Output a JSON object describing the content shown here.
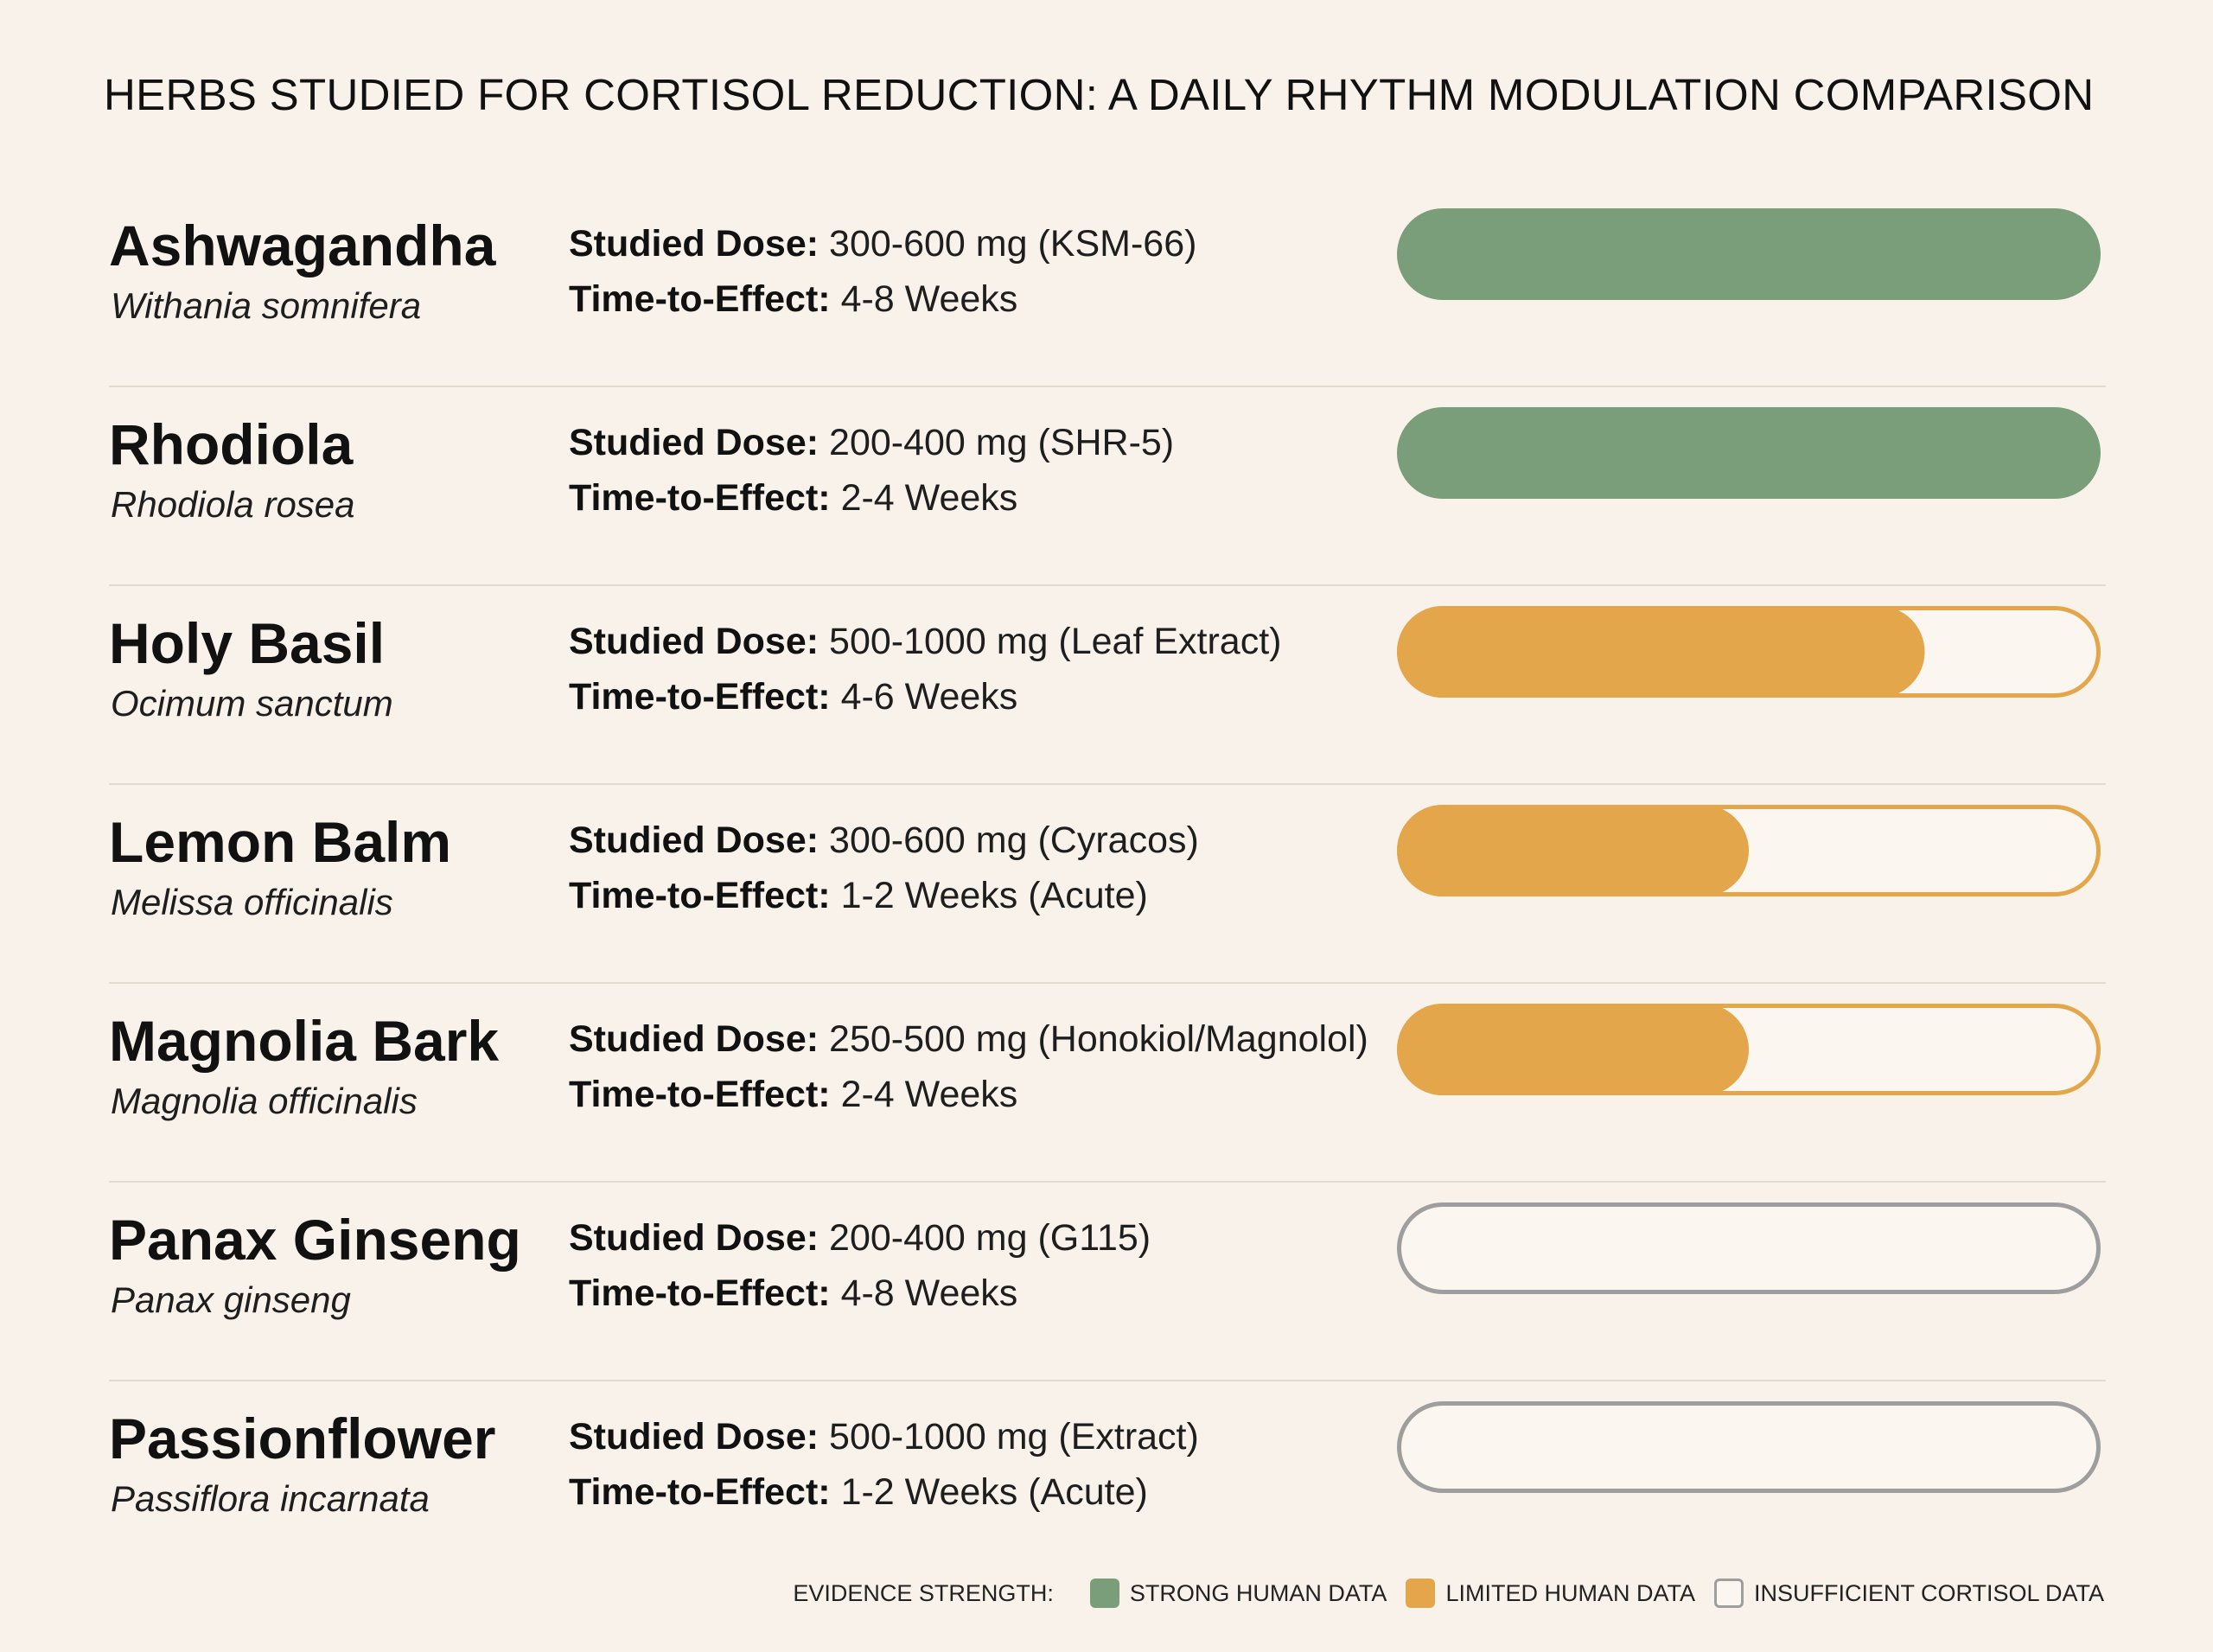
{
  "chart_data": {
    "type": "bar",
    "title": "HERBS STUDIED FOR CORTISOL REDUCTION: A DAILY RHYTHM MODULATION COMPARISON",
    "categories": [
      "Ashwagandha",
      "Rhodiola",
      "Holy Basil",
      "Lemon Balm",
      "Magnolia Bark",
      "Panax Ginseng",
      "Passionflower"
    ],
    "labels": {
      "dose": "Studied Dose:",
      "time": "Time-to-Effect:"
    },
    "rows": [
      {
        "name": "Ashwagandha",
        "latin": "Withania somnifera",
        "dose": "300-600 mg (KSM-66)",
        "time": "4-8 Weeks",
        "evidence": "strong",
        "value": 1.0
      },
      {
        "name": "Rhodiola",
        "latin": "Rhodiola rosea",
        "dose": "200-400 mg (SHR-5)",
        "time": "2-4 Weeks",
        "evidence": "strong",
        "value": 1.0
      },
      {
        "name": "Holy Basil",
        "latin": "Ocimum sanctum",
        "dose": "500-1000 mg (Leaf Extract)",
        "time": "4-6 Weeks",
        "evidence": "limited",
        "value": 0.75
      },
      {
        "name": "Lemon Balm",
        "latin": "Melissa officinalis",
        "dose": "300-600 mg (Cyracos)",
        "time": "1-2 Weeks (Acute)",
        "evidence": "limited",
        "value": 0.5
      },
      {
        "name": "Magnolia Bark",
        "latin": "Magnolia officinalis",
        "dose": "250-500 mg (Honokiol/Magnolol)",
        "time": "2-4 Weeks",
        "evidence": "limited",
        "value": 0.5
      },
      {
        "name": "Panax Ginseng",
        "latin": "Panax ginseng",
        "dose": "200-400 mg (G115)",
        "time": "4-8 Weeks",
        "evidence": "insufficient",
        "value": 0.0
      },
      {
        "name": "Passionflower",
        "latin": "Passiflora incarnata",
        "dose": "500-1000 mg (Extract)",
        "time": "1-2 Weeks (Acute)",
        "evidence": "insufficient",
        "value": 0.0
      }
    ],
    "legend": {
      "title": "EVIDENCE STRENGTH:",
      "items": [
        {
          "key": "strong",
          "label": "STRONG HUMAN DATA",
          "color": "#7a9e7a"
        },
        {
          "key": "limited",
          "label": "LIMITED HUMAN DATA",
          "color": "#e3a64a"
        },
        {
          "key": "insufficient",
          "label": "INSUFFICIENT CORTISOL DATA",
          "color": "#9e9e9e"
        }
      ]
    },
    "legend_position": "bottom-right",
    "grid": false
  }
}
